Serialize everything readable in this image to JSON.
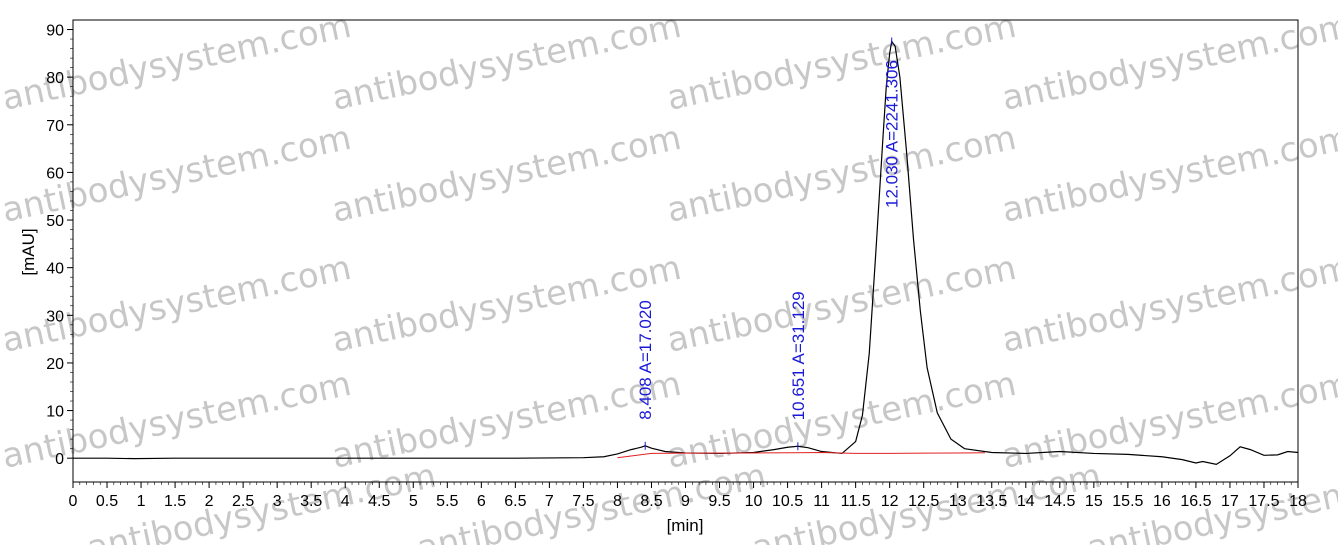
{
  "watermark_text": "antibodysystem.com",
  "chart_data": {
    "type": "line",
    "xlabel": "[min]",
    "ylabel": "[mAU]",
    "xlim": [
      0,
      18
    ],
    "ylim": [
      -5,
      92
    ],
    "x_ticks": [
      "0",
      "0.5",
      "1",
      "1.5",
      "2",
      "2.5",
      "3",
      "3.5",
      "4",
      "4.5",
      "5",
      "5.5",
      "6",
      "6.5",
      "7",
      "7.5",
      "8",
      "8.5",
      "9",
      "9.5",
      "10",
      "10.5",
      "11",
      "11.5",
      "12",
      "12.5",
      "13",
      "13.5",
      "14",
      "14.5",
      "15",
      "15.5",
      "16",
      "16.5",
      "17",
      "17.5",
      "18"
    ],
    "x_tick_values": [
      0,
      0.5,
      1,
      1.5,
      2,
      2.5,
      3,
      3.5,
      4,
      4.5,
      5,
      5.5,
      6,
      6.5,
      7,
      7.5,
      8,
      8.5,
      9,
      9.5,
      10,
      10.5,
      11,
      11.5,
      12,
      12.5,
      13,
      13.5,
      14,
      14.5,
      15,
      15.5,
      16,
      16.5,
      17,
      17.5,
      18
    ],
    "y_ticks": [
      "0",
      "10",
      "20",
      "30",
      "40",
      "50",
      "60",
      "70",
      "80",
      "90"
    ],
    "y_tick_values": [
      0,
      10,
      20,
      30,
      40,
      50,
      60,
      70,
      80,
      90
    ],
    "grid": false,
    "series": [
      {
        "color": "#000000",
        "x": [
          0,
          0.5,
          0.9,
          1.5,
          2.5,
          3.5,
          4.5,
          5.5,
          6.5,
          7.5,
          7.8,
          8.0,
          8.2,
          8.35,
          8.408,
          8.5,
          8.7,
          9.0,
          9.5,
          10.0,
          10.3,
          10.5,
          10.651,
          10.8,
          11.0,
          11.3,
          11.5,
          11.6,
          11.7,
          11.8,
          11.9,
          11.95,
          12.0,
          12.03,
          12.08,
          12.15,
          12.25,
          12.35,
          12.45,
          12.55,
          12.7,
          12.9,
          13.1,
          13.5,
          14.0,
          14.5,
          15.0,
          15.5,
          16.0,
          16.3,
          16.5,
          16.6,
          16.8,
          17.0,
          17.15,
          17.3,
          17.5,
          17.7,
          17.85,
          18.0
        ],
        "y": [
          0,
          0,
          -0.1,
          0,
          0,
          0,
          0,
          0,
          0,
          0.1,
          0.3,
          0.9,
          1.8,
          2.3,
          2.6,
          2.1,
          1.4,
          1.1,
          1.0,
          1.2,
          1.8,
          2.3,
          2.5,
          2.2,
          1.4,
          1.0,
          3.5,
          9.0,
          22.0,
          44.0,
          67.0,
          78.0,
          85.0,
          87.5,
          86.5,
          80.0,
          64.0,
          46.0,
          31.0,
          19.0,
          9.5,
          4.0,
          2.0,
          1.2,
          1.0,
          1.4,
          1.0,
          0.8,
          0.3,
          -0.3,
          -1.0,
          -0.7,
          -1.3,
          0.5,
          2.4,
          1.8,
          0.6,
          0.7,
          1.4,
          1.2
        ]
      },
      {
        "color": "#e02020",
        "x": [
          8.0,
          8.5,
          9.0,
          10.0,
          10.6,
          11.0,
          11.5,
          12.0,
          12.5,
          13.0,
          13.4
        ],
        "y": [
          0.1,
          1.0,
          1.05,
          1.1,
          1.15,
          1.2,
          1.0,
          1.0,
          1.05,
          1.1,
          1.15
        ]
      }
    ],
    "annotations": [
      {
        "x": 8.408,
        "text": "8.408 A=17.020"
      },
      {
        "x": 10.651,
        "text": "10.651 A=31.129"
      },
      {
        "x": 12.03,
        "text": "12.030 A=2241.306"
      }
    ]
  }
}
